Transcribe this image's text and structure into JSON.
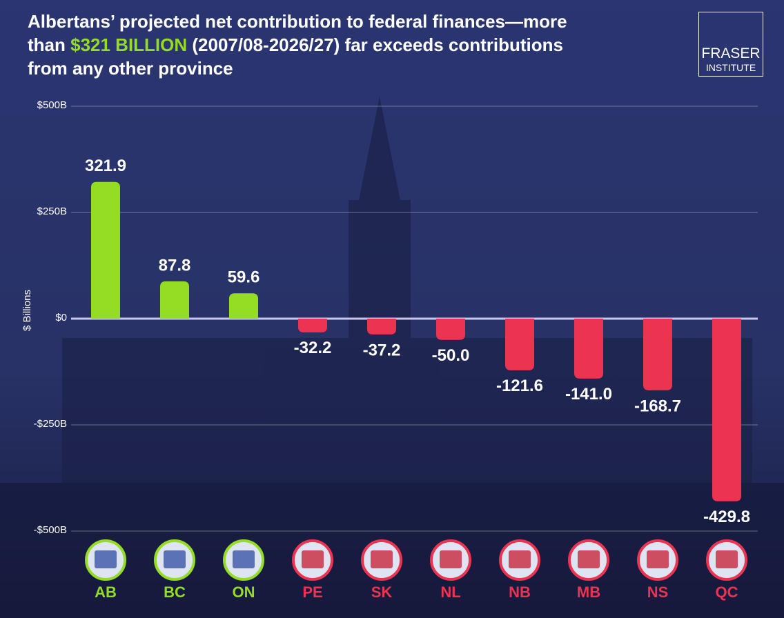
{
  "chart_data": {
    "type": "bar",
    "title_parts": [
      "Albertans’ projected net contribution to federal finances—more than ",
      "$321 BILLION",
      " (2007/08-2026/27) far exceeds contributions from any other province"
    ],
    "logo": [
      "FRASER",
      "INSTITUTE"
    ],
    "y_label": "$ Billions",
    "categories": [
      "AB",
      "BC",
      "ON",
      "PE",
      "SK",
      "NL",
      "NB",
      "MB",
      "NS",
      "QC"
    ],
    "values": [
      321.9,
      87.8,
      59.6,
      -32.2,
      -37.2,
      -50.0,
      -121.6,
      -141.0,
      -168.7,
      -429.8
    ],
    "value_labels": [
      "321.9",
      "87.8",
      "59.6",
      "-32.2",
      "-37.2",
      "-50.0",
      "-121.6",
      "-141.0",
      "-168.7",
      "-429.8"
    ],
    "colors": {
      "positive": "#95dc24",
      "negative": "#ec3452"
    },
    "ylim": [
      -500,
      500
    ],
    "yticks": [
      {
        "value": 500,
        "label": "$500B"
      },
      {
        "value": 250,
        "label": "$250B"
      },
      {
        "value": 0,
        "label": "$0"
      },
      {
        "value": -250,
        "label": "-$250B"
      },
      {
        "value": -500,
        "label": "-$500B"
      }
    ],
    "grid": true
  }
}
